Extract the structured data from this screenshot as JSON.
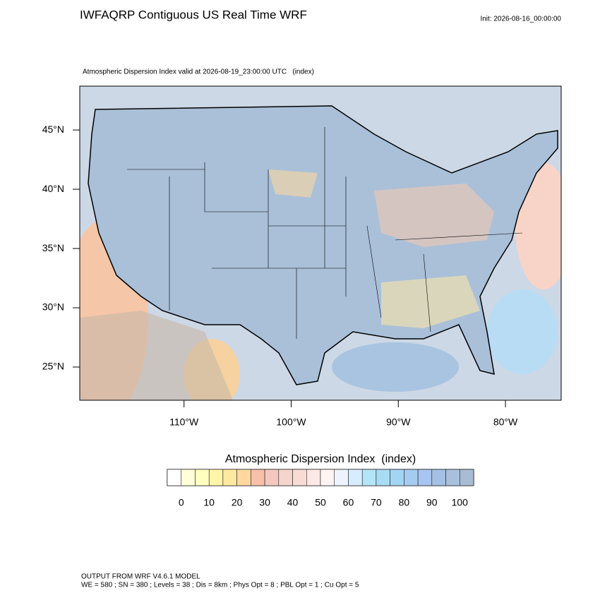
{
  "header": {
    "title": "IWFAQRP Contiguous US Real Time WRF",
    "init": "Init: 2026-08-16_00:00:00",
    "subtitle": "Atmospheric Dispersion Index valid at 2026-08-19_23:00:00 UTC   (index)"
  },
  "map": {
    "lon_range": [
      -119.73,
      -74.8
    ],
    "lat_range": [
      22.2,
      48.7
    ],
    "lon_ticks": [
      {
        "value": -110,
        "label": "110°W"
      },
      {
        "value": -100,
        "label": "100°W"
      },
      {
        "value": -90,
        "label": "90°W"
      },
      {
        "value": -80,
        "label": "80°W"
      }
    ],
    "lat_ticks": [
      {
        "value": 25,
        "label": "25°N"
      },
      {
        "value": 30,
        "label": "30°N"
      },
      {
        "value": 35,
        "label": "35°N"
      },
      {
        "value": 40,
        "label": "40°N"
      },
      {
        "value": 45,
        "label": "45°N"
      }
    ]
  },
  "colorbar": {
    "title": "Atmospheric Dispersion Index  (index)",
    "levels": [
      0,
      5,
      10,
      15,
      20,
      25,
      30,
      35,
      40,
      45,
      50,
      55,
      60,
      65,
      70,
      75,
      80,
      85,
      90,
      95,
      100
    ],
    "ticks": [
      0,
      10,
      20,
      30,
      40,
      50,
      60,
      70,
      80,
      90,
      100
    ],
    "colors": [
      "#ffffff",
      "#ffffd8",
      "#ffffc0",
      "#fff4a8",
      "#ffe8a0",
      "#ffd8a0",
      "#f8c0a8",
      "#f4c8c0",
      "#f4d4cc",
      "#f8dcd4",
      "#fce8e4",
      "#fff4f4",
      "#eef4ff",
      "#d8ecff",
      "#b4e4f8",
      "#a8dcf4",
      "#a4d4f4",
      "#a4ccf0",
      "#a8c4f0",
      "#a4c0e4",
      "#a8c0dc",
      "#a8bcd4"
    ]
  },
  "footer": {
    "line1": "OUTPUT FROM WRF V4.6.1 MODEL",
    "line2": "WE = 580 ; SN = 380 ; Levels = 38 ; Dis = 8km ; Phys Opt = 8 ; PBL Opt = 1 ; Cu Opt = 5"
  }
}
